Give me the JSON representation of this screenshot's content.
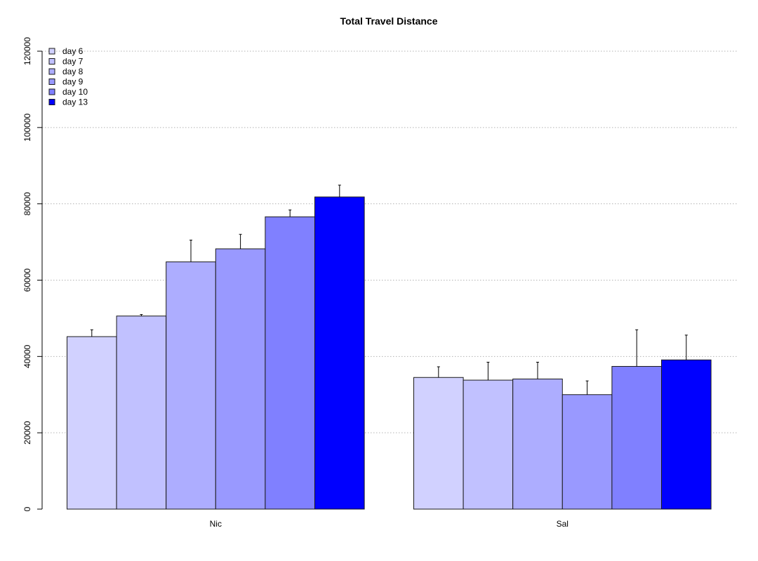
{
  "chart_data": {
    "type": "bar",
    "title": "Total Travel Distance",
    "xlabel": "",
    "ylabel": "",
    "categories": [
      "Nic",
      "Sal"
    ],
    "series": [
      {
        "name": "day 6",
        "color": "#d1d1ff",
        "values": [
          45200,
          34500
        ],
        "error": [
          1800,
          2800
        ]
      },
      {
        "name": "day 7",
        "color": "#c1c1ff",
        "values": [
          50600,
          33800
        ],
        "error": [
          400,
          4700
        ]
      },
      {
        "name": "day 8",
        "color": "#adadff",
        "values": [
          64800,
          34100
        ],
        "error": [
          5700,
          4400
        ]
      },
      {
        "name": "day 9",
        "color": "#9999ff",
        "values": [
          68200,
          30000
        ],
        "error": [
          3800,
          3600
        ]
      },
      {
        "name": "day 10",
        "color": "#8080ff",
        "values": [
          76600,
          37400
        ],
        "error": [
          1800,
          9600
        ]
      },
      {
        "name": "day 13",
        "color": "#0000ff",
        "values": [
          81800,
          39100
        ],
        "error": [
          3100,
          6500
        ]
      }
    ],
    "ylim": [
      0,
      120000
    ],
    "yticks": [
      0,
      20000,
      40000,
      60000,
      80000,
      100000,
      120000
    ],
    "ytick_labels": [
      "0",
      "20000",
      "40000",
      "60000",
      "80000",
      "100000",
      "120000"
    ],
    "grid": "horizontal dotted",
    "legend_position": "top-left"
  }
}
